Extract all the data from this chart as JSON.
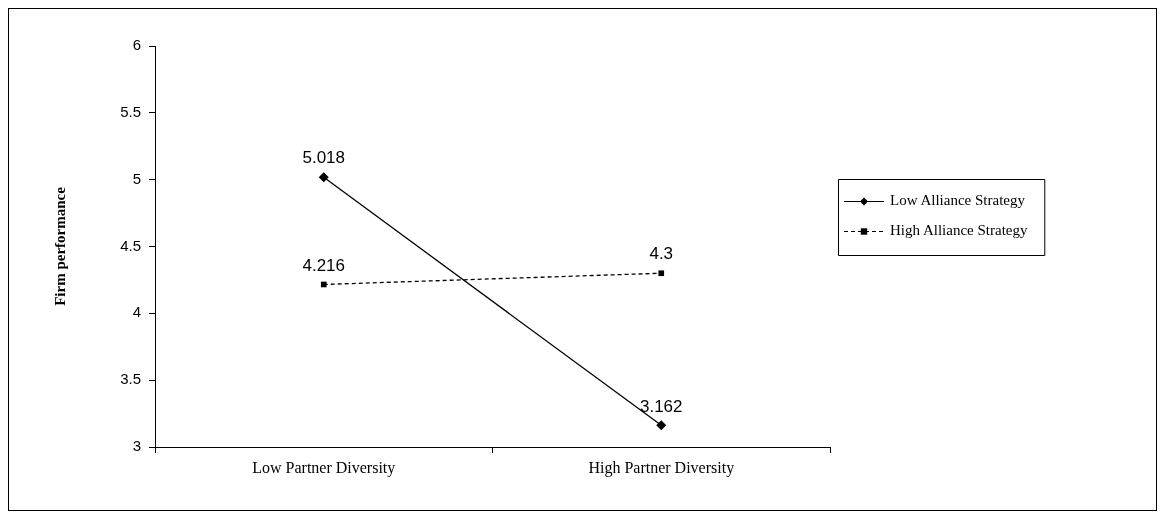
{
  "chart_data": {
    "type": "line",
    "ylabel": "Firm performance",
    "categories": [
      "Low Partner Diversity",
      "High Partner Diversity"
    ],
    "series": [
      {
        "name": "Low Alliance Strategy",
        "color": "#000000",
        "values": [
          5.018,
          3.162
        ],
        "marker": "diamond",
        "line_style": "solid"
      },
      {
        "name": "High Alliance Strategy",
        "color": "#000000",
        "values": [
          4.216,
          4.3
        ],
        "marker": "square",
        "line_style": "dashed"
      }
    ],
    "ylim": [
      3,
      6
    ],
    "yticks": [
      3,
      3.5,
      4,
      4.5,
      5,
      5.5,
      6
    ],
    "grid": false,
    "legend": "right",
    "data_labels": true
  }
}
